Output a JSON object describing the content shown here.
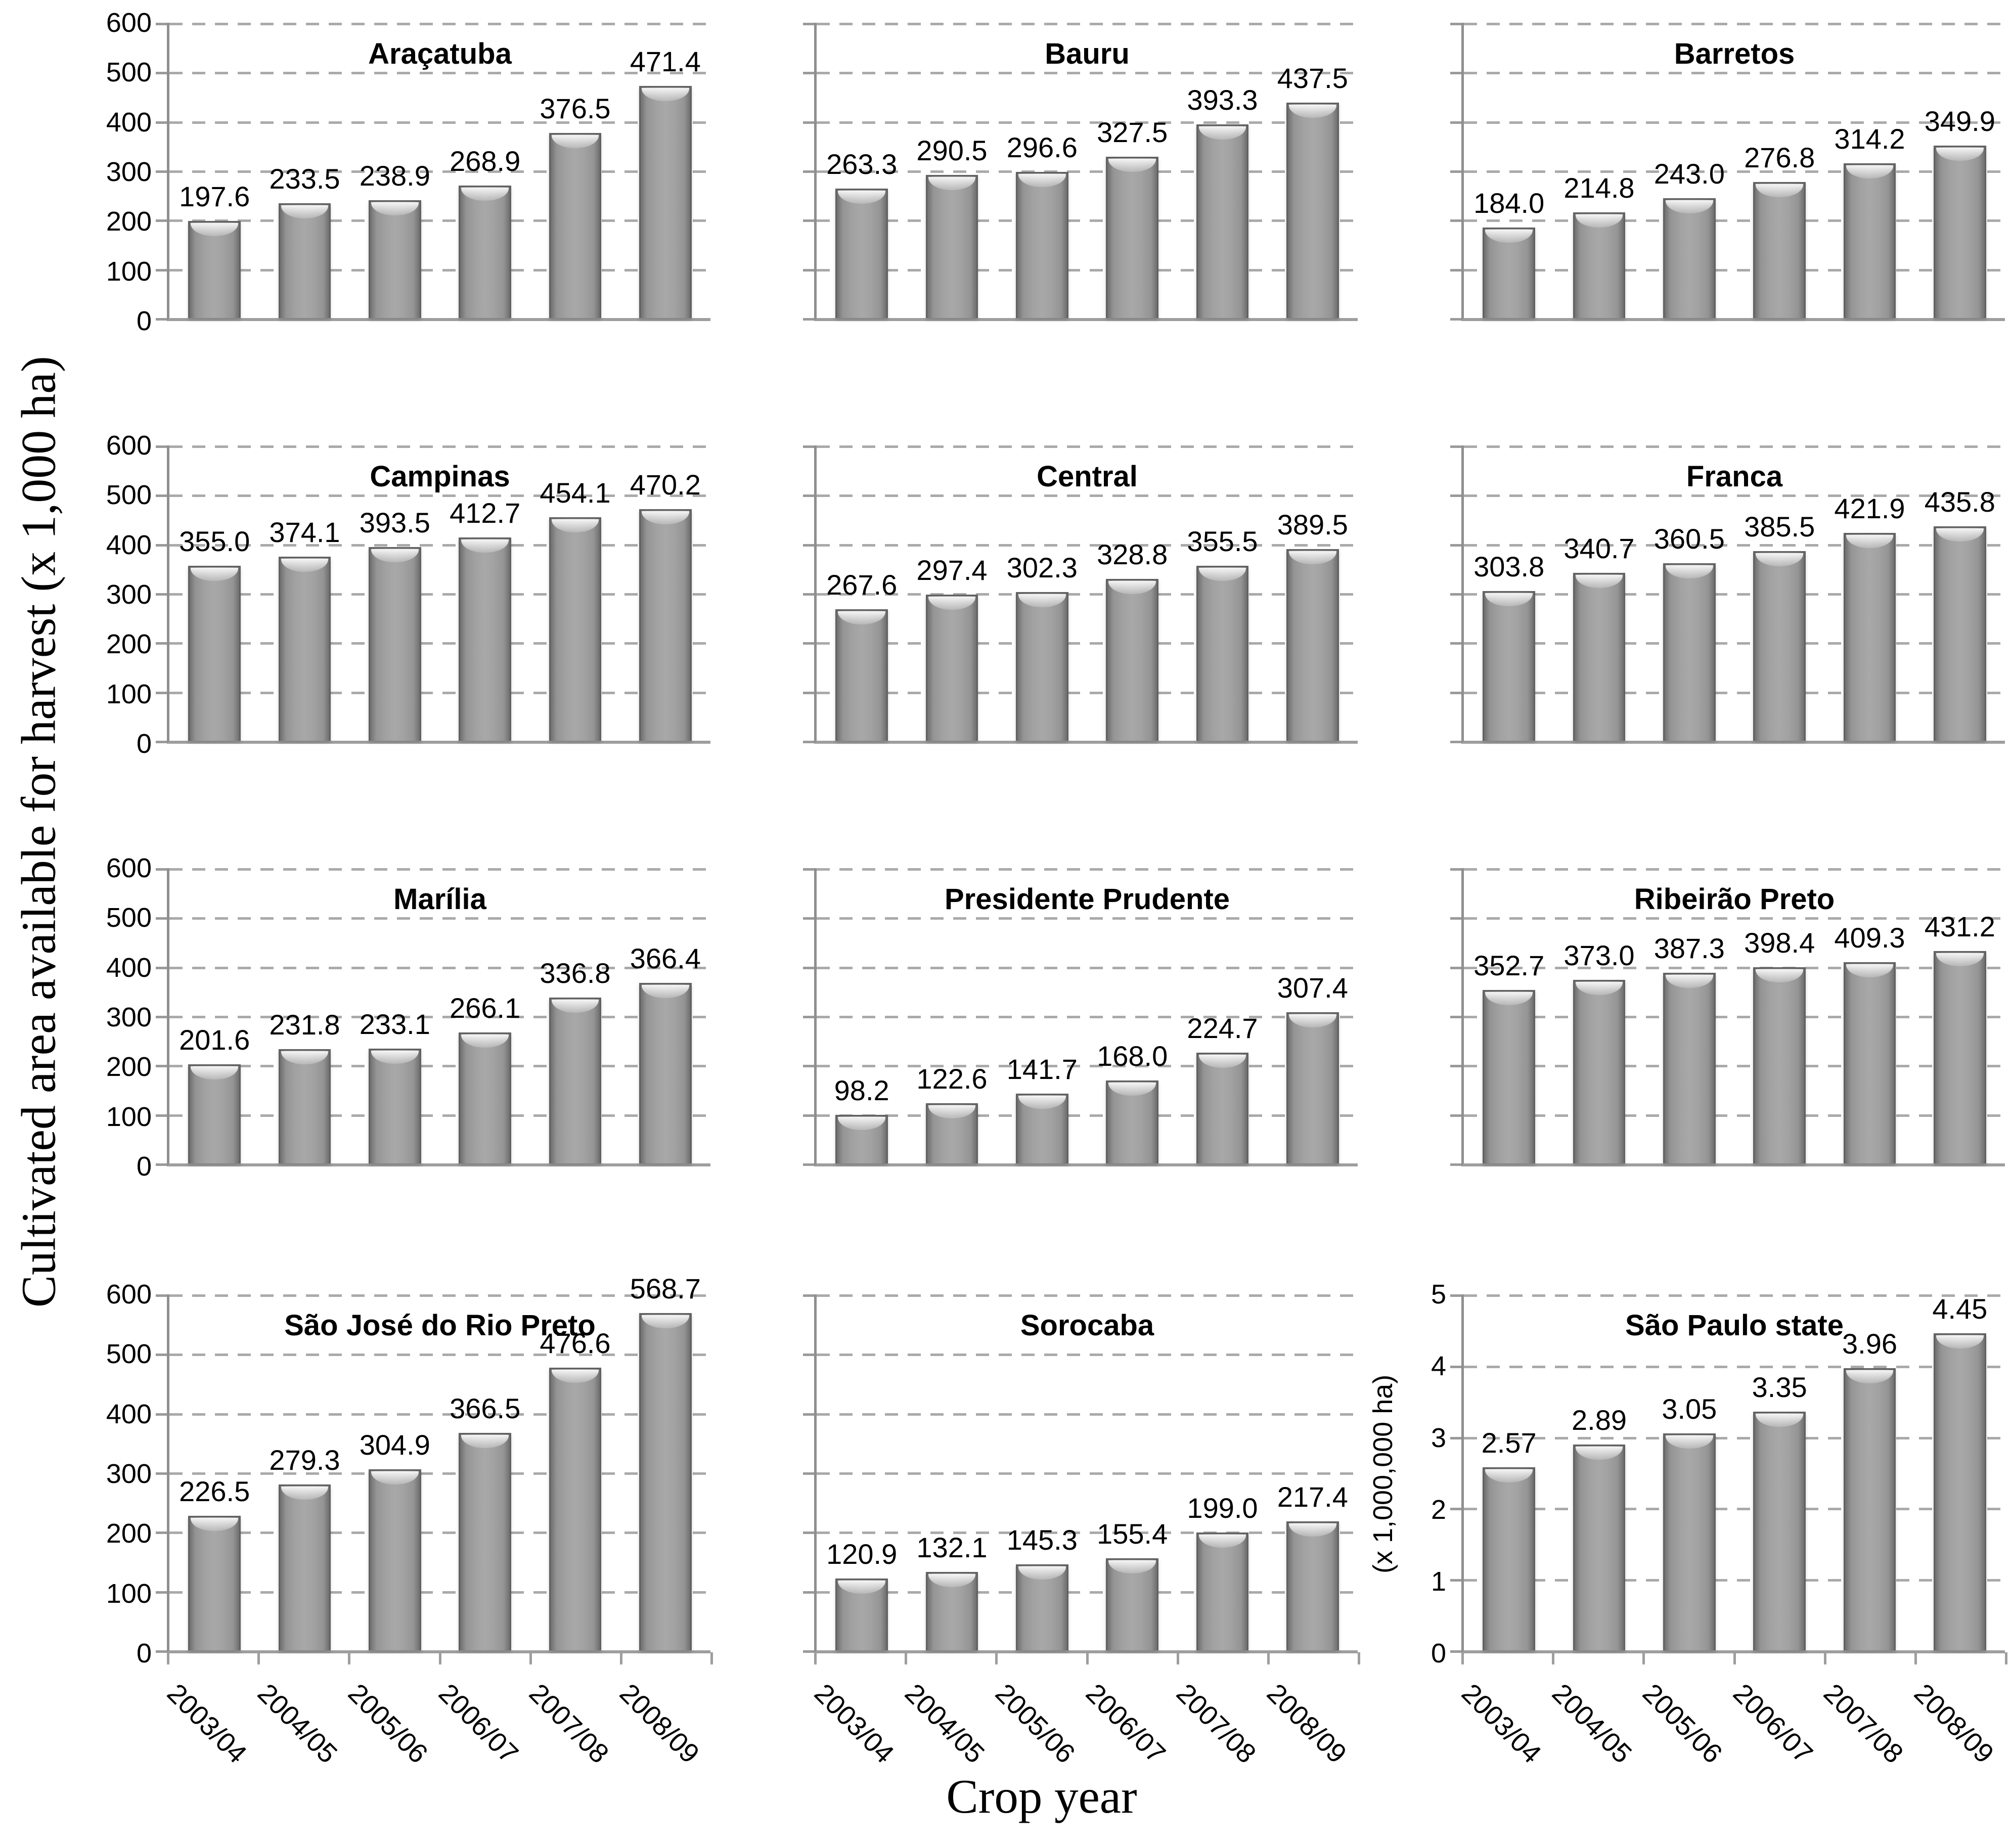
{
  "figure": {
    "y_axis_label": "Cultivated area available for harvest (x 1,000 ha)",
    "x_axis_label": "Crop year"
  },
  "colors": {
    "bar_fill": "#a8a8a8",
    "bar_edge": "#616161",
    "gridline": "#aaaaaa",
    "axis": "#8f8f8f",
    "text": "#000000"
  },
  "chart_data": [
    {
      "type": "bar",
      "title": "Araçatuba",
      "categories": [
        "2003/04",
        "2004/05",
        "2005/06",
        "2006/07",
        "2007/08",
        "2008/09"
      ],
      "values": [
        197.6,
        233.5,
        238.9,
        268.9,
        376.5,
        471.4
      ],
      "labels": [
        "197.6",
        "233.5",
        "238.9",
        "268.9",
        "376.5",
        "471.4"
      ],
      "ylim": [
        0,
        600
      ],
      "ytick_step": 100,
      "grid": true,
      "show_ytick_labels": true,
      "show_xtick_labels": false,
      "ylabel": ""
    },
    {
      "type": "bar",
      "title": "Bauru",
      "categories": [
        "2003/04",
        "2004/05",
        "2005/06",
        "2006/07",
        "2007/08",
        "2008/09"
      ],
      "values": [
        263.3,
        290.5,
        296.6,
        327.5,
        393.3,
        437.5
      ],
      "labels": [
        "263.3",
        "290.5",
        "296.6",
        "327.5",
        "393.3",
        "437.5"
      ],
      "ylim": [
        0,
        600
      ],
      "ytick_step": 100,
      "grid": true,
      "show_ytick_labels": false,
      "show_xtick_labels": false,
      "ylabel": ""
    },
    {
      "type": "bar",
      "title": "Barretos",
      "categories": [
        "2003/04",
        "2004/05",
        "2005/06",
        "2006/07",
        "2007/08",
        "2008/09"
      ],
      "values": [
        184.0,
        214.8,
        243.0,
        276.8,
        314.2,
        349.9
      ],
      "labels": [
        "184.0",
        "214.8",
        "243.0",
        "276.8",
        "314.2",
        "349.9"
      ],
      "ylim": [
        0,
        600
      ],
      "ytick_step": 100,
      "grid": true,
      "show_ytick_labels": false,
      "show_xtick_labels": false,
      "ylabel": ""
    },
    {
      "type": "bar",
      "title": "Campinas",
      "categories": [
        "2003/04",
        "2004/05",
        "2005/06",
        "2006/07",
        "2007/08",
        "2008/09"
      ],
      "values": [
        355.0,
        374.1,
        393.5,
        412.7,
        454.1,
        470.2
      ],
      "labels": [
        "355.0",
        "374.1",
        "393.5",
        "412.7",
        "454.1",
        "470.2"
      ],
      "ylim": [
        0,
        600
      ],
      "ytick_step": 100,
      "grid": true,
      "show_ytick_labels": true,
      "show_xtick_labels": false,
      "ylabel": ""
    },
    {
      "type": "bar",
      "title": "Central",
      "categories": [
        "2003/04",
        "2004/05",
        "2005/06",
        "2006/07",
        "2007/08",
        "2008/09"
      ],
      "values": [
        267.6,
        297.4,
        302.3,
        328.8,
        355.5,
        389.5
      ],
      "labels": [
        "267.6",
        "297.4",
        "302.3",
        "328.8",
        "355.5",
        "389.5"
      ],
      "ylim": [
        0,
        600
      ],
      "ytick_step": 100,
      "grid": true,
      "show_ytick_labels": false,
      "show_xtick_labels": false,
      "ylabel": ""
    },
    {
      "type": "bar",
      "title": "Franca",
      "categories": [
        "2003/04",
        "2004/05",
        "2005/06",
        "2006/07",
        "2007/08",
        "2008/09"
      ],
      "values": [
        303.8,
        340.7,
        360.5,
        385.5,
        421.9,
        435.8
      ],
      "labels": [
        "303.8",
        "340.7",
        "360.5",
        "385.5",
        "421.9",
        "435.8"
      ],
      "ylim": [
        0,
        600
      ],
      "ytick_step": 100,
      "grid": true,
      "show_ytick_labels": false,
      "show_xtick_labels": false,
      "ylabel": ""
    },
    {
      "type": "bar",
      "title": "Marília",
      "categories": [
        "2003/04",
        "2004/05",
        "2005/06",
        "2006/07",
        "2007/08",
        "2008/09"
      ],
      "values": [
        201.6,
        231.8,
        233.1,
        266.1,
        336.8,
        366.4
      ],
      "labels": [
        "201.6",
        "231.8",
        "233.1",
        "266.1",
        "336.8",
        "366.4"
      ],
      "ylim": [
        0,
        600
      ],
      "ytick_step": 100,
      "grid": true,
      "show_ytick_labels": true,
      "show_xtick_labels": false,
      "ylabel": ""
    },
    {
      "type": "bar",
      "title": "Presidente Prudente",
      "categories": [
        "2003/04",
        "2004/05",
        "2005/06",
        "2006/07",
        "2007/08",
        "2008/09"
      ],
      "values": [
        98.2,
        122.6,
        141.7,
        168.0,
        224.7,
        307.4
      ],
      "labels": [
        "98.2",
        "122.6",
        "141.7",
        "168.0",
        "224.7",
        "307.4"
      ],
      "ylim": [
        0,
        600
      ],
      "ytick_step": 100,
      "grid": true,
      "show_ytick_labels": false,
      "show_xtick_labels": false,
      "ylabel": ""
    },
    {
      "type": "bar",
      "title": "Ribeirão Preto",
      "categories": [
        "2003/04",
        "2004/05",
        "2005/06",
        "2006/07",
        "2007/08",
        "2008/09"
      ],
      "values": [
        352.7,
        373.0,
        387.3,
        398.4,
        409.3,
        431.2
      ],
      "labels": [
        "352.7",
        "373.0",
        "387.3",
        "398.4",
        "409.3",
        "431.2"
      ],
      "ylim": [
        0,
        600
      ],
      "ytick_step": 100,
      "grid": true,
      "show_ytick_labels": false,
      "show_xtick_labels": false,
      "ylabel": ""
    },
    {
      "type": "bar",
      "title": "São José do Rio Preto",
      "categories": [
        "2003/04",
        "2004/05",
        "2005/06",
        "2006/07",
        "2007/08",
        "2008/09"
      ],
      "values": [
        226.5,
        279.3,
        304.9,
        366.5,
        476.6,
        568.7
      ],
      "labels": [
        "226.5",
        "279.3",
        "304.9",
        "366.5",
        "476.6",
        "568.7"
      ],
      "ylim": [
        0,
        600
      ],
      "ytick_step": 100,
      "grid": true,
      "show_ytick_labels": true,
      "show_xtick_labels": true,
      "ylabel": ""
    },
    {
      "type": "bar",
      "title": "Sorocaba",
      "categories": [
        "2003/04",
        "2004/05",
        "2005/06",
        "2006/07",
        "2007/08",
        "2008/09"
      ],
      "values": [
        120.9,
        132.1,
        145.3,
        155.4,
        199.0,
        217.4
      ],
      "labels": [
        "120.9",
        "132.1",
        "145.3",
        "155.4",
        "199.0",
        "217.4"
      ],
      "ylim": [
        0,
        600
      ],
      "ytick_step": 100,
      "grid": true,
      "show_ytick_labels": false,
      "show_xtick_labels": true,
      "ylabel": ""
    },
    {
      "type": "bar",
      "title": "São Paulo state",
      "categories": [
        "2003/04",
        "2004/05",
        "2005/06",
        "2006/07",
        "2007/08",
        "2008/09"
      ],
      "values": [
        2.57,
        2.89,
        3.05,
        3.35,
        3.96,
        4.45
      ],
      "labels": [
        "2.57",
        "2.89",
        "3.05",
        "3.35",
        "3.96",
        "4.45"
      ],
      "ylim": [
        0,
        5
      ],
      "ytick_step": 1,
      "grid": true,
      "show_ytick_labels": true,
      "show_xtick_labels": true,
      "ylabel": "(x 1,000,000 ha)"
    }
  ]
}
